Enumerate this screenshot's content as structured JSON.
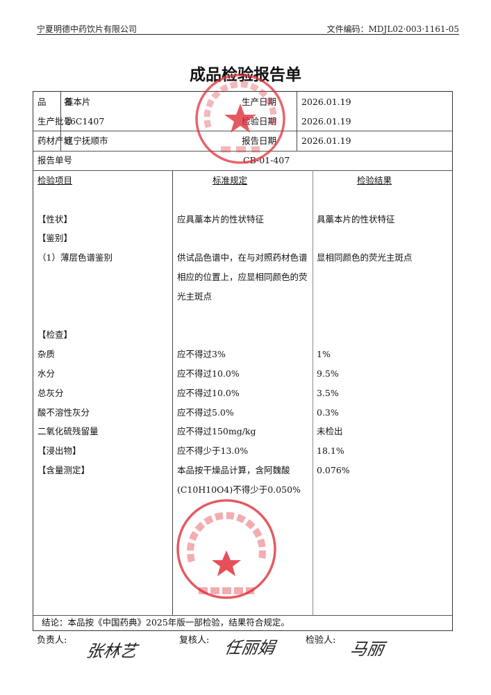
{
  "header": {
    "company": "宁夏明德中药饮片有限公司",
    "doc_code": "文件编码：MDJL02·003·1161-05"
  },
  "title": "成品检验报告单",
  "info": {
    "product_label": "品　　名",
    "product": "藁本片",
    "batch_label": "生产批号",
    "batch": "26C1407",
    "origin_label": "药材产地",
    "origin": "辽宁抚顺市",
    "prod_date_label": "生产日期",
    "prod_date": "2026.01.19",
    "test_date_label": "检验日期",
    "test_date": "2026.01.19",
    "report_date_label": "报告日期",
    "report_date": "2026.01.19",
    "report_no_label": "报告单号",
    "report_no": "CB-01-407"
  },
  "columns": [
    "检验项目",
    "标准规定",
    "检验结果"
  ],
  "rows": [
    {
      "item": "【性状】",
      "standard": "应具藁本片的性状特征",
      "result": "具藁本片的性状特征"
    },
    {
      "item": "【鉴别】",
      "standard": "",
      "result": ""
    },
    {
      "item": "（1）薄层色谱鉴别",
      "standard_lines": [
        "供试品色谱中，在与对照药材色谱",
        "相应的位置上，应显相同颜色的荧",
        "光主斑点"
      ],
      "result": "显相同颜色的荧光主斑点"
    },
    {
      "item": "【检查】",
      "standard": "",
      "result": ""
    },
    {
      "item": "杂质",
      "standard": "应不得过3%",
      "result": "1%"
    },
    {
      "item": "水分",
      "standard": "应不得过10.0%",
      "result": "9.5%"
    },
    {
      "item": "总灰分",
      "standard": "应不得过10.0%",
      "result": "3.5%"
    },
    {
      "item": "酸不溶性灰分",
      "standard": "应不得过5.0%",
      "result": "0.3%"
    },
    {
      "item": "二氧化硫残留量",
      "standard": "应不得过150mg/kg",
      "result": "未检出"
    },
    {
      "item": "【浸出物】",
      "standard": "应不得少于13.0%",
      "result": "18.1%"
    },
    {
      "item": "【含量测定】",
      "standard_line1": "本品按干燥品计算，含阿魏酸",
      "standard_line2_formula": "(C10H10O4)",
      "standard_line2_rest": "不得少于0.050%",
      "result": "0.076%"
    }
  ],
  "conclusion": "结论：本品按《中国药典》2025年版一部检验，结果符合规定。",
  "signatures": {
    "responsible_label": "负责人:",
    "responsible": "张林艺",
    "reviewer_label": "复核人:",
    "reviewer": "任丽娟",
    "inspector_label": "检验人:",
    "inspector": "马丽"
  },
  "stamps": {
    "top": {
      "ring_text": "宁夏明德中药饮片有限公司",
      "center_text": "质量部"
    },
    "bottom": {
      "ring_text": "宁夏明德中药饮片有限公司",
      "center_text": "质检专用章"
    },
    "color": "#e0303a"
  }
}
